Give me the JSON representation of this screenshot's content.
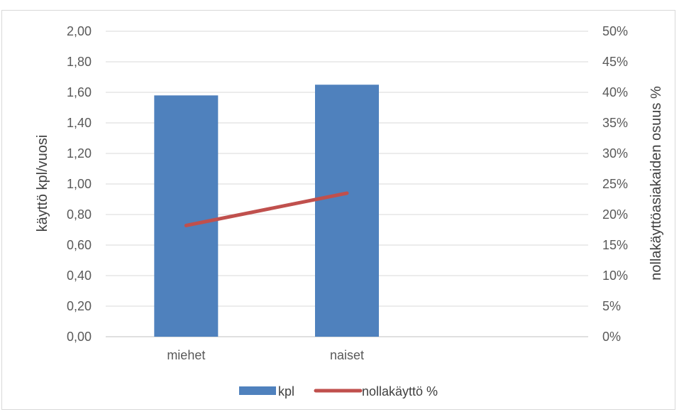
{
  "chart_data": {
    "type": "bar",
    "categories": [
      "miehet",
      "naiset"
    ],
    "series": [
      {
        "name": "kpl",
        "type": "bar",
        "axis": "left",
        "values": [
          1.58,
          1.65
        ],
        "color": "#4f81bd"
      },
      {
        "name": "nollakäyttö %",
        "type": "line",
        "axis": "right",
        "values": [
          0.182,
          0.235
        ],
        "color": "#c0504d"
      }
    ],
    "ylabel": "käyttö kpl/vuosi",
    "y2label": "nollakäyttöasiakaiden osuus %",
    "ylim": [
      0,
      2.0
    ],
    "y2lim": [
      0,
      0.5
    ],
    "y_ticks": [
      "0,00",
      "0,20",
      "0,40",
      "0,60",
      "0,80",
      "1,00",
      "1,20",
      "1,40",
      "1,60",
      "1,80",
      "2,00"
    ],
    "y2_ticks": [
      "0%",
      "5%",
      "10%",
      "15%",
      "20%",
      "25%",
      "30%",
      "35%",
      "40%",
      "45%",
      "50%"
    ],
    "grid": true,
    "legend_position": "bottom"
  }
}
